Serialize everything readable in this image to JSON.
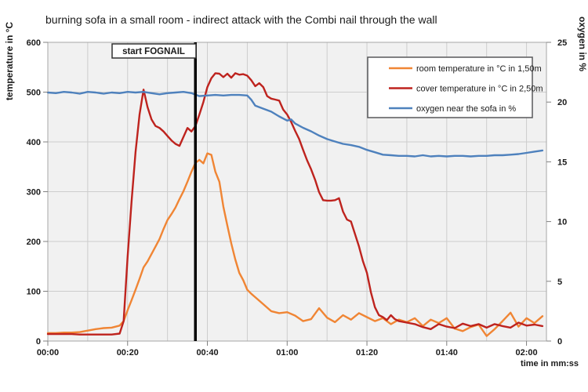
{
  "title": "burning sofa in a small room - indirect attack with the Combi nail through the wall",
  "colors": {
    "room_temp": "#F08534",
    "cover_temp": "#BE231E",
    "oxygen": "#4E81BD",
    "plot_background": "#F1F1F1",
    "gridline": "#CDCDCD",
    "plot_border": "#A6A6A6",
    "tick": "#808080",
    "event_line": "#000000",
    "legend_border": "#58595B",
    "text": "#1A1A1A"
  },
  "chart_data": {
    "type": "line",
    "title": "burning sofa in a small room - indirect attack with the Combi nail through the wall",
    "x_axis": {
      "label": "time in mm:ss",
      "range_s": [
        0,
        125
      ],
      "minor_grid_step_s": 10,
      "ticks": [
        {
          "s": 0,
          "label": "00:00"
        },
        {
          "s": 20,
          "label": "00:20"
        },
        {
          "s": 40,
          "label": "00:40"
        },
        {
          "s": 60,
          "label": "01:00"
        },
        {
          "s": 80,
          "label": "01:20"
        },
        {
          "s": 100,
          "label": "01:40"
        },
        {
          "s": 120,
          "label": "02:00"
        }
      ]
    },
    "y_left": {
      "label": "temperature in °C",
      "range": [
        0,
        600
      ],
      "ticks": [
        0,
        100,
        200,
        300,
        400,
        500,
        600
      ],
      "grid": [
        100,
        200,
        300,
        400,
        500
      ]
    },
    "y_right": {
      "label": "oxygen in %",
      "range": [
        0,
        25
      ],
      "ticks": [
        0,
        5,
        10,
        15,
        20,
        25
      ]
    },
    "annotation": {
      "label": "start FOGNAIL",
      "time_s": 37
    },
    "legend_position": "top-right",
    "series": [
      {
        "name": "room temperature in °C in 1,50m",
        "axis": "left",
        "color": "#F08534",
        "points": [
          [
            0,
            16
          ],
          [
            2,
            16
          ],
          [
            4,
            17
          ],
          [
            6,
            17
          ],
          [
            8,
            18
          ],
          [
            10,
            21
          ],
          [
            12,
            24
          ],
          [
            14,
            26
          ],
          [
            16,
            27
          ],
          [
            18,
            31
          ],
          [
            19,
            40
          ],
          [
            20,
            62
          ],
          [
            21,
            82
          ],
          [
            22,
            103
          ],
          [
            23,
            125
          ],
          [
            24,
            148
          ],
          [
            25,
            160
          ],
          [
            26,
            175
          ],
          [
            27,
            190
          ],
          [
            28,
            205
          ],
          [
            29,
            225
          ],
          [
            30,
            243
          ],
          [
            31,
            255
          ],
          [
            32,
            268
          ],
          [
            33,
            285
          ],
          [
            34,
            301
          ],
          [
            35,
            320
          ],
          [
            36,
            340
          ],
          [
            37,
            358
          ],
          [
            38,
            364
          ],
          [
            39,
            357
          ],
          [
            40,
            377
          ],
          [
            41,
            374
          ],
          [
            42,
            340
          ],
          [
            43,
            320
          ],
          [
            44,
            270
          ],
          [
            45,
            232
          ],
          [
            46,
            196
          ],
          [
            47,
            164
          ],
          [
            48,
            137
          ],
          [
            49,
            122
          ],
          [
            50,
            103
          ],
          [
            51,
            95
          ],
          [
            52,
            88
          ],
          [
            54,
            74
          ],
          [
            56,
            60
          ],
          [
            58,
            56
          ],
          [
            60,
            58
          ],
          [
            62,
            51
          ],
          [
            64,
            40
          ],
          [
            66,
            44
          ],
          [
            68,
            66
          ],
          [
            70,
            47
          ],
          [
            72,
            38
          ],
          [
            74,
            52
          ],
          [
            76,
            43
          ],
          [
            78,
            56
          ],
          [
            80,
            48
          ],
          [
            82,
            40
          ],
          [
            84,
            46
          ],
          [
            86,
            34
          ],
          [
            88,
            43
          ],
          [
            90,
            38
          ],
          [
            92,
            46
          ],
          [
            94,
            30
          ],
          [
            96,
            43
          ],
          [
            98,
            36
          ],
          [
            100,
            46
          ],
          [
            102,
            25
          ],
          [
            104,
            20
          ],
          [
            106,
            28
          ],
          [
            108,
            33
          ],
          [
            110,
            10
          ],
          [
            112,
            24
          ],
          [
            114,
            40
          ],
          [
            116,
            57
          ],
          [
            118,
            29
          ],
          [
            120,
            46
          ],
          [
            122,
            36
          ],
          [
            124,
            50
          ]
        ]
      },
      {
        "name": "cover temperature in °C in 2,50m",
        "axis": "left",
        "color": "#BE231E",
        "points": [
          [
            0,
            14
          ],
          [
            2,
            14
          ],
          [
            4,
            14
          ],
          [
            6,
            14
          ],
          [
            8,
            13
          ],
          [
            10,
            13
          ],
          [
            12,
            13
          ],
          [
            14,
            13
          ],
          [
            16,
            13
          ],
          [
            18,
            15
          ],
          [
            19,
            40
          ],
          [
            20,
            170
          ],
          [
            21,
            280
          ],
          [
            22,
            380
          ],
          [
            23,
            455
          ],
          [
            24,
            505
          ],
          [
            25,
            470
          ],
          [
            26,
            445
          ],
          [
            27,
            432
          ],
          [
            28,
            428
          ],
          [
            29,
            421
          ],
          [
            30,
            412
          ],
          [
            31,
            403
          ],
          [
            32,
            396
          ],
          [
            33,
            392
          ],
          [
            34,
            410
          ],
          [
            35,
            428
          ],
          [
            36,
            421
          ],
          [
            37,
            432
          ],
          [
            38,
            455
          ],
          [
            39,
            480
          ],
          [
            40,
            510
          ],
          [
            41,
            528
          ],
          [
            42,
            538
          ],
          [
            43,
            537
          ],
          [
            44,
            530
          ],
          [
            45,
            537
          ],
          [
            46,
            529
          ],
          [
            47,
            538
          ],
          [
            48,
            535
          ],
          [
            49,
            536
          ],
          [
            50,
            533
          ],
          [
            51,
            524
          ],
          [
            52,
            512
          ],
          [
            53,
            518
          ],
          [
            54,
            510
          ],
          [
            55,
            492
          ],
          [
            56,
            487
          ],
          [
            57,
            485
          ],
          [
            58,
            483
          ],
          [
            59,
            465
          ],
          [
            60,
            455
          ],
          [
            61,
            440
          ],
          [
            62,
            422
          ],
          [
            63,
            406
          ],
          [
            64,
            384
          ],
          [
            65,
            363
          ],
          [
            66,
            345
          ],
          [
            67,
            324
          ],
          [
            68,
            299
          ],
          [
            69,
            283
          ],
          [
            70,
            282
          ],
          [
            71,
            282
          ],
          [
            72,
            283
          ],
          [
            73,
            287
          ],
          [
            74,
            260
          ],
          [
            75,
            244
          ],
          [
            76,
            240
          ],
          [
            77,
            215
          ],
          [
            78,
            190
          ],
          [
            79,
            160
          ],
          [
            80,
            137
          ],
          [
            81,
            98
          ],
          [
            82,
            68
          ],
          [
            83,
            52
          ],
          [
            84,
            48
          ],
          [
            85,
            42
          ],
          [
            86,
            52
          ],
          [
            87,
            44
          ],
          [
            88,
            40
          ],
          [
            90,
            37
          ],
          [
            92,
            34
          ],
          [
            94,
            28
          ],
          [
            96,
            24
          ],
          [
            98,
            34
          ],
          [
            100,
            29
          ],
          [
            102,
            26
          ],
          [
            104,
            35
          ],
          [
            106,
            30
          ],
          [
            108,
            34
          ],
          [
            110,
            27
          ],
          [
            112,
            34
          ],
          [
            114,
            30
          ],
          [
            116,
            27
          ],
          [
            118,
            37
          ],
          [
            120,
            31
          ],
          [
            122,
            33
          ],
          [
            124,
            30
          ]
        ]
      },
      {
        "name": "oxygen near the sofa in %",
        "axis": "right",
        "color": "#4E81BD",
        "points": [
          [
            0,
            20.8
          ],
          [
            2,
            20.75
          ],
          [
            4,
            20.85
          ],
          [
            6,
            20.8
          ],
          [
            8,
            20.7
          ],
          [
            10,
            20.85
          ],
          [
            12,
            20.8
          ],
          [
            14,
            20.7
          ],
          [
            16,
            20.8
          ],
          [
            18,
            20.75
          ],
          [
            20,
            20.85
          ],
          [
            22,
            20.8
          ],
          [
            24,
            20.85
          ],
          [
            26,
            20.75
          ],
          [
            28,
            20.65
          ],
          [
            30,
            20.75
          ],
          [
            32,
            20.8
          ],
          [
            34,
            20.85
          ],
          [
            36,
            20.75
          ],
          [
            38,
            20.5
          ],
          [
            40,
            20.55
          ],
          [
            42,
            20.6
          ],
          [
            44,
            20.55
          ],
          [
            46,
            20.6
          ],
          [
            48,
            20.6
          ],
          [
            50,
            20.55
          ],
          [
            51,
            20.2
          ],
          [
            52,
            19.7
          ],
          [
            54,
            19.45
          ],
          [
            56,
            19.2
          ],
          [
            58,
            18.8
          ],
          [
            60,
            18.45
          ],
          [
            61,
            18.55
          ],
          [
            62,
            18.2
          ],
          [
            64,
            17.85
          ],
          [
            66,
            17.55
          ],
          [
            68,
            17.2
          ],
          [
            70,
            16.9
          ],
          [
            72,
            16.7
          ],
          [
            74,
            16.5
          ],
          [
            76,
            16.4
          ],
          [
            78,
            16.25
          ],
          [
            80,
            16.0
          ],
          [
            82,
            15.8
          ],
          [
            84,
            15.6
          ],
          [
            86,
            15.55
          ],
          [
            88,
            15.5
          ],
          [
            90,
            15.5
          ],
          [
            92,
            15.45
          ],
          [
            94,
            15.55
          ],
          [
            96,
            15.45
          ],
          [
            98,
            15.5
          ],
          [
            100,
            15.45
          ],
          [
            102,
            15.5
          ],
          [
            104,
            15.5
          ],
          [
            106,
            15.45
          ],
          [
            108,
            15.5
          ],
          [
            110,
            15.5
          ],
          [
            112,
            15.55
          ],
          [
            114,
            15.55
          ],
          [
            116,
            15.6
          ],
          [
            118,
            15.65
          ],
          [
            120,
            15.75
          ],
          [
            122,
            15.85
          ],
          [
            124,
            15.95
          ]
        ]
      }
    ]
  }
}
